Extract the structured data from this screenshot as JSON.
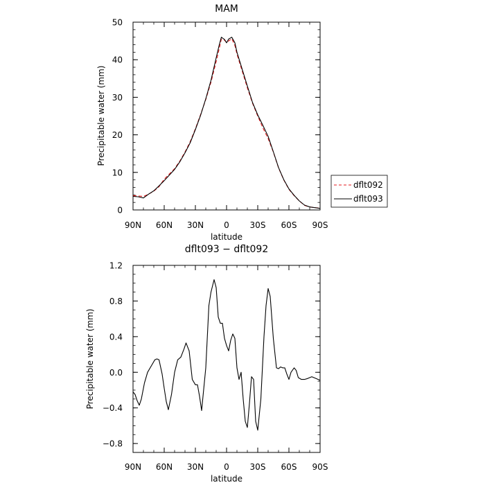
{
  "chart_data": [
    {
      "type": "line",
      "title": "MAM",
      "xlabel": "latitude",
      "ylabel": "Precipitable water (mm)",
      "xlim": [
        90,
        -90
      ],
      "ylim": [
        0,
        50
      ],
      "x_ticks": [
        {
          "value": 90,
          "label": "90N"
        },
        {
          "value": 60,
          "label": "60N"
        },
        {
          "value": 30,
          "label": "30N"
        },
        {
          "value": 0,
          "label": "0"
        },
        {
          "value": -30,
          "label": "30S"
        },
        {
          "value": -60,
          "label": "60S"
        },
        {
          "value": -90,
          "label": "90S"
        }
      ],
      "y_ticks": [
        0,
        10,
        20,
        30,
        40,
        50
      ],
      "legend": "right",
      "series": [
        {
          "name": "dflt092",
          "color": "#e31a1c",
          "dash": "dashed",
          "x": [
            90,
            85,
            80,
            75,
            70,
            65,
            60,
            55,
            50,
            45,
            40,
            35,
            30,
            25,
            20,
            15,
            10,
            7,
            5,
            2,
            0,
            -2,
            -5,
            -8,
            -10,
            -15,
            -20,
            -25,
            -30,
            -35,
            -40,
            -45,
            -50,
            -55,
            -60,
            -65,
            -70,
            -75,
            -80,
            -85,
            -90
          ],
          "values": [
            3.8,
            3.7,
            3.6,
            4.2,
            5.0,
            6.2,
            8.2,
            9.6,
            11.0,
            13.0,
            15.4,
            18.2,
            21.6,
            25.4,
            29.4,
            34.0,
            39.5,
            43.0,
            45.5,
            45.2,
            44.6,
            45.0,
            45.6,
            43.8,
            41.5,
            37.0,
            32.5,
            28.4,
            25.0,
            21.8,
            19.0,
            15.4,
            11.2,
            8.0,
            5.5,
            3.8,
            2.4,
            1.2,
            0.8,
            0.6,
            0.5
          ]
        },
        {
          "name": "dflt093",
          "color": "#000000",
          "dash": "solid",
          "x": [
            90,
            85,
            80,
            75,
            70,
            65,
            60,
            55,
            50,
            45,
            40,
            35,
            30,
            25,
            20,
            15,
            10,
            7,
            5,
            2,
            0,
            -2,
            -5,
            -8,
            -10,
            -15,
            -20,
            -25,
            -30,
            -35,
            -40,
            -45,
            -50,
            -55,
            -60,
            -65,
            -70,
            -75,
            -80,
            -85,
            -90
          ],
          "values": [
            3.6,
            3.5,
            3.2,
            4.2,
            5.1,
            6.4,
            7.8,
            9.3,
            10.8,
            12.8,
            15.2,
            17.9,
            21.4,
            25.2,
            29.6,
            34.5,
            40.5,
            44.0,
            46.0,
            45.4,
            44.5,
            45.5,
            46.0,
            44.5,
            42.0,
            37.5,
            33.0,
            28.6,
            25.3,
            22.5,
            19.6,
            15.5,
            11.3,
            8.1,
            5.6,
            3.9,
            2.4,
            1.3,
            0.8,
            0.6,
            0.4
          ]
        }
      ]
    },
    {
      "type": "line",
      "title": "dflt093 − dflt092",
      "xlabel": "latitude",
      "ylabel": "Precipitable water (mm)",
      "xlim": [
        90,
        -90
      ],
      "ylim": [
        -0.9,
        1.2
      ],
      "x_ticks": [
        {
          "value": 90,
          "label": "90N"
        },
        {
          "value": 60,
          "label": "60N"
        },
        {
          "value": 30,
          "label": "30N"
        },
        {
          "value": 0,
          "label": "0"
        },
        {
          "value": -30,
          "label": "30S"
        },
        {
          "value": -60,
          "label": "60S"
        },
        {
          "value": -90,
          "label": "90S"
        }
      ],
      "y_ticks": [
        {
          "value": -0.8,
          "label": "−0.8"
        },
        {
          "value": -0.4,
          "label": "−0.4"
        },
        {
          "value": 0.0,
          "label": "0.0"
        },
        {
          "value": 0.4,
          "label": "0.4"
        },
        {
          "value": 0.8,
          "label": "0.8"
        },
        {
          "value": 1.2,
          "label": "1.2"
        }
      ],
      "series": [
        {
          "name": "dflt093 − dflt092",
          "color": "#000000",
          "dash": "solid",
          "x": [
            90,
            88,
            86,
            84,
            82,
            79,
            76,
            72,
            69,
            67,
            65,
            62,
            60,
            58,
            56,
            53,
            50,
            47,
            44,
            41,
            39,
            36,
            33,
            30,
            28,
            26,
            24,
            20,
            17,
            15,
            12,
            10,
            8,
            6,
            4,
            2,
            0,
            -2,
            -4,
            -6,
            -8,
            -10,
            -12,
            -14,
            -16,
            -18,
            -20,
            -22,
            -24,
            -26,
            -28,
            -30,
            -33,
            -36,
            -38,
            -40,
            -42,
            -45,
            -48,
            -50,
            -52,
            -54,
            -56,
            -58,
            -60,
            -62,
            -65,
            -67,
            -69,
            -72,
            -75,
            -78,
            -82,
            -86,
            -90
          ],
          "values": [
            -0.22,
            -0.25,
            -0.32,
            -0.37,
            -0.3,
            -0.12,
            0.0,
            0.08,
            0.14,
            0.15,
            0.14,
            -0.02,
            -0.18,
            -0.33,
            -0.42,
            -0.25,
            0.0,
            0.14,
            0.17,
            0.26,
            0.33,
            0.24,
            -0.08,
            -0.14,
            -0.14,
            -0.27,
            -0.43,
            0.05,
            0.75,
            0.9,
            1.04,
            0.95,
            0.62,
            0.55,
            0.55,
            0.38,
            0.3,
            0.24,
            0.36,
            0.43,
            0.38,
            0.05,
            -0.08,
            0.0,
            -0.3,
            -0.55,
            -0.62,
            -0.35,
            -0.05,
            -0.08,
            -0.55,
            -0.65,
            -0.3,
            0.4,
            0.75,
            0.94,
            0.85,
            0.38,
            0.05,
            0.04,
            0.06,
            0.05,
            0.05,
            -0.02,
            -0.08,
            0.0,
            0.05,
            0.02,
            -0.06,
            -0.08,
            -0.08,
            -0.07,
            -0.05,
            -0.07,
            -0.09
          ]
        }
      ]
    }
  ]
}
